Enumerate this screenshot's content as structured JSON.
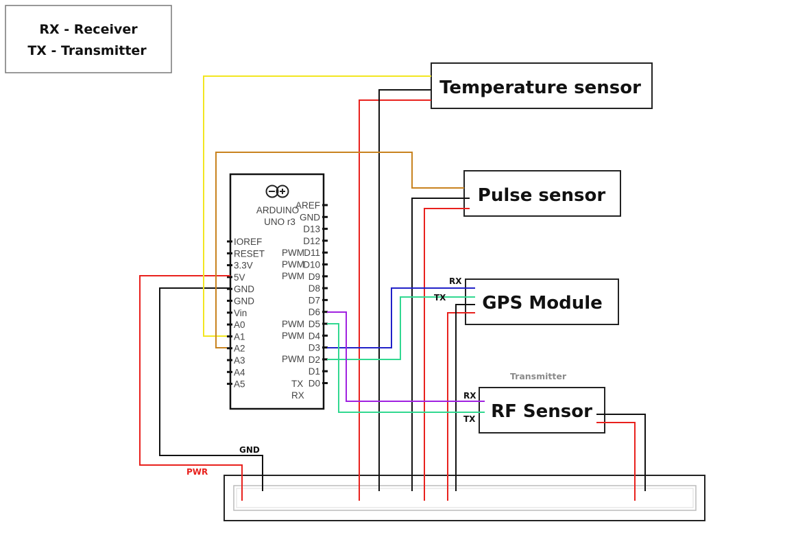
{
  "legend": {
    "line1": "RX - Receiver",
    "line2": "TX - Transmitter"
  },
  "arduino": {
    "logo_text": "ARDUINO",
    "model_text": "UNO r3",
    "left_pins": [
      "IOREF",
      "RESET",
      "3.3V",
      "5V",
      "GND",
      "GND",
      "Vin",
      "A0",
      "A1",
      "A2",
      "A3",
      "A4",
      "A5"
    ],
    "right_pins": [
      "AREF",
      "GND",
      "D13",
      "D12",
      "D11",
      "D10",
      "D9",
      "D8",
      "D7",
      "D6",
      "D5",
      "D4",
      "D3",
      "D2",
      "D1",
      "D0"
    ],
    "pwm_label": "PWM",
    "tx_label": "TX",
    "rx_label": "RX"
  },
  "modules": {
    "temperature": "Temperature sensor",
    "pulse": "Pulse sensor",
    "gps": "GPS Module",
    "rf": "RF Sensor"
  },
  "labels": {
    "gps_rx": "RX",
    "gps_tx": "TX",
    "rf_rx": "RX",
    "rf_tx": "TX",
    "rf_caption": "Transmitter",
    "gnd": "GND",
    "pwr": "PWR"
  },
  "colors": {
    "power": "#e8201c",
    "ground": "#111111",
    "yellow": "#f2e620",
    "orange": "#c8821e",
    "blue": "#2020c8",
    "green": "#30d890",
    "purple": "#a020e0",
    "caption_gray": "#8a8a8a"
  }
}
